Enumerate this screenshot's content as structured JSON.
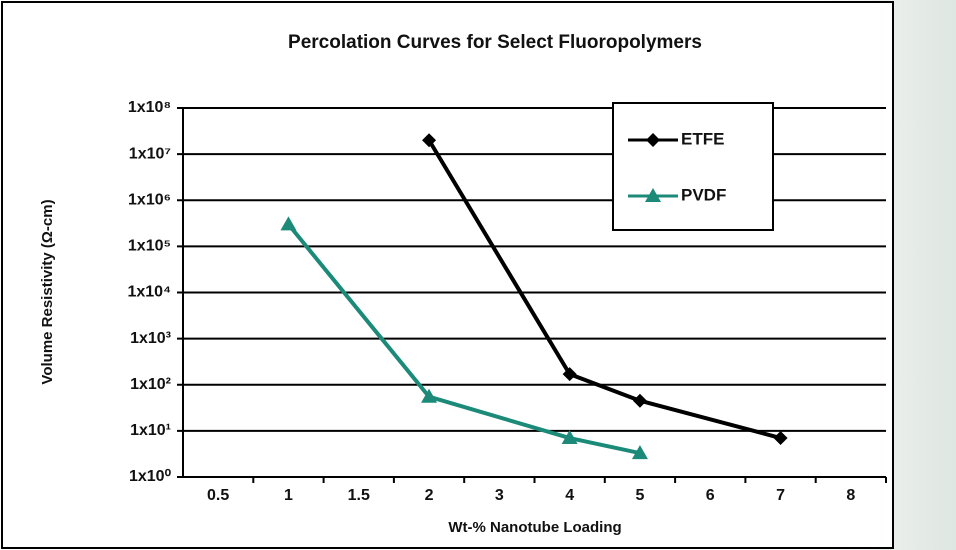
{
  "chart_data": {
    "type": "line",
    "title": "Percolation Curves for Select Fluoropolymers",
    "x_label": "Wt-% Nanotube Loading",
    "y_label": "Volume Resistivity (Ω-cm)",
    "categories": [
      "0.5",
      "1",
      "1.5",
      "2",
      "3",
      "4",
      "5",
      "6",
      "7",
      "8"
    ],
    "yscale": "log",
    "ylim": [
      1,
      100000000
    ],
    "yticks": [
      {
        "value": 1,
        "label": "1x10⁰"
      },
      {
        "value": 10,
        "label": "1x10¹"
      },
      {
        "value": 100,
        "label": "1x10²"
      },
      {
        "value": 1000,
        "label": "1x10³"
      },
      {
        "value": 10000,
        "label": "1x10⁴"
      },
      {
        "value": 100000,
        "label": "1x10⁵"
      },
      {
        "value": 1000000,
        "label": "1x10⁶"
      },
      {
        "value": 10000000,
        "label": "1x10⁷"
      },
      {
        "value": 100000000,
        "label": "1x10⁸"
      }
    ],
    "grid": true,
    "legend": "upper right",
    "series": [
      {
        "name": "ETFE",
        "color": "#000000",
        "marker": "diamond",
        "x": [
          "2",
          "4",
          "5",
          "7"
        ],
        "values": [
          20000000,
          170,
          45,
          7
        ]
      },
      {
        "name": "PVDF",
        "color": "#1b8a78",
        "marker": "triangle",
        "x": [
          "1",
          "2",
          "4",
          "5"
        ],
        "values": [
          300000,
          55,
          7,
          3.3
        ]
      }
    ]
  }
}
